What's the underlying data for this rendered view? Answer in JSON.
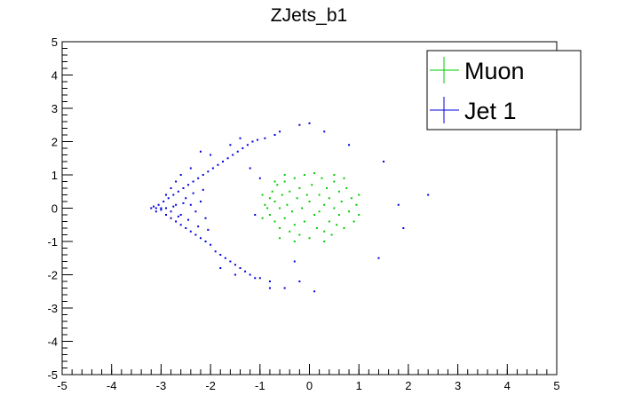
{
  "chart_data": {
    "type": "scatter",
    "title": "ZJets_b1",
    "xlabel": "",
    "ylabel": "",
    "xlim": [
      -5,
      5
    ],
    "ylim": [
      -5,
      5
    ],
    "x_ticks": [
      "-5",
      "-4",
      "-3",
      "-2",
      "-1",
      "0",
      "1",
      "2",
      "3",
      "4",
      "5"
    ],
    "y_ticks": [
      "-5",
      "-4",
      "-3",
      "-2",
      "-1",
      "0",
      "1",
      "2",
      "3",
      "4",
      "5"
    ],
    "legend_position": "top-right",
    "grid": false,
    "series": [
      {
        "name": "Muon",
        "color": "#00cc00",
        "points": [
          [
            -0.9,
            0.1
          ],
          [
            -0.85,
            0.0
          ],
          [
            -0.8,
            0.3
          ],
          [
            -0.8,
            -0.2
          ],
          [
            -0.75,
            0.5
          ],
          [
            -0.7,
            -0.4
          ],
          [
            -0.7,
            0.2
          ],
          [
            -0.65,
            0.7
          ],
          [
            -0.6,
            -0.6
          ],
          [
            -0.6,
            0.0
          ],
          [
            -0.55,
            0.4
          ],
          [
            -0.5,
            -0.3
          ],
          [
            -0.5,
            0.8
          ],
          [
            -0.45,
            0.1
          ],
          [
            -0.4,
            -0.7
          ],
          [
            -0.4,
            0.5
          ],
          [
            -0.35,
            -0.1
          ],
          [
            -0.3,
            0.9
          ],
          [
            -0.3,
            -0.5
          ],
          [
            -0.25,
            0.3
          ],
          [
            -0.2,
            -0.8
          ],
          [
            -0.2,
            0.6
          ],
          [
            -0.15,
            0.0
          ],
          [
            -0.1,
            1.0
          ],
          [
            -0.1,
            -0.4
          ],
          [
            -0.05,
            0.4
          ],
          [
            0.0,
            -0.9
          ],
          [
            0.0,
            0.2
          ],
          [
            0.05,
            0.7
          ],
          [
            0.1,
            -0.2
          ],
          [
            0.1,
            1.05
          ],
          [
            0.15,
            -0.6
          ],
          [
            0.2,
            0.4
          ],
          [
            0.2,
            -0.1
          ],
          [
            0.25,
            0.9
          ],
          [
            0.3,
            -0.7
          ],
          [
            0.3,
            0.1
          ],
          [
            0.35,
            0.6
          ],
          [
            0.4,
            -0.4
          ],
          [
            0.4,
            0.3
          ],
          [
            0.45,
            -0.8
          ],
          [
            0.5,
            0.8
          ],
          [
            0.5,
            0.0
          ],
          [
            0.55,
            -0.5
          ],
          [
            0.6,
            0.5
          ],
          [
            0.6,
            -0.2
          ],
          [
            0.65,
            0.2
          ],
          [
            0.7,
            -0.6
          ],
          [
            0.75,
            0.6
          ],
          [
            0.8,
            -0.1
          ],
          [
            0.85,
            0.3
          ],
          [
            0.9,
            -0.4
          ],
          [
            0.95,
            0.1
          ],
          [
            1.0,
            -0.2
          ],
          [
            1.0,
            0.4
          ],
          [
            -0.95,
            -0.3
          ],
          [
            -0.95,
            0.4
          ],
          [
            -0.6,
            -0.9
          ],
          [
            -0.3,
            -1.0
          ],
          [
            0.3,
            -1.0
          ],
          [
            0.5,
            1.0
          ],
          [
            -0.5,
            1.0
          ],
          [
            0.7,
            0.9
          ],
          [
            -0.7,
            0.8
          ]
        ]
      },
      {
        "name": "Jet 1",
        "color": "#0000e0",
        "points": [
          [
            -3.2,
            0.0
          ],
          [
            -3.15,
            0.05
          ],
          [
            -3.1,
            -0.1
          ],
          [
            -3.05,
            0.1
          ],
          [
            -3.0,
            -0.05
          ],
          [
            -2.95,
            0.2
          ],
          [
            -2.9,
            -0.2
          ],
          [
            -2.85,
            0.3
          ],
          [
            -2.8,
            -0.3
          ],
          [
            -2.75,
            0.4
          ],
          [
            -2.7,
            -0.4
          ],
          [
            -2.65,
            0.5
          ],
          [
            -2.6,
            -0.5
          ],
          [
            -2.55,
            0.6
          ],
          [
            -2.5,
            -0.6
          ],
          [
            -2.45,
            0.7
          ],
          [
            -2.4,
            -0.7
          ],
          [
            -2.35,
            0.8
          ],
          [
            -2.3,
            -0.8
          ],
          [
            -2.25,
            0.9
          ],
          [
            -2.2,
            -0.9
          ],
          [
            -2.15,
            1.0
          ],
          [
            -2.1,
            -1.0
          ],
          [
            -2.05,
            1.1
          ],
          [
            -2.0,
            -1.1
          ],
          [
            -1.95,
            1.2
          ],
          [
            -1.9,
            -1.3
          ],
          [
            -1.85,
            1.3
          ],
          [
            -1.8,
            -1.4
          ],
          [
            -1.75,
            1.4
          ],
          [
            -1.7,
            -1.5
          ],
          [
            -1.65,
            1.5
          ],
          [
            -1.6,
            -1.6
          ],
          [
            -1.55,
            1.6
          ],
          [
            -1.5,
            -1.7
          ],
          [
            -1.45,
            1.7
          ],
          [
            -1.4,
            -1.8
          ],
          [
            -1.35,
            1.8
          ],
          [
            -1.3,
            -1.9
          ],
          [
            -1.25,
            1.9
          ],
          [
            -1.2,
            -2.0
          ],
          [
            -1.15,
            2.0
          ],
          [
            -1.1,
            -2.1
          ],
          [
            -1.05,
            2.05
          ],
          [
            -1.0,
            -2.1
          ],
          [
            -0.9,
            2.1
          ],
          [
            -0.8,
            -2.2
          ],
          [
            -0.7,
            2.2
          ],
          [
            -1.6,
            1.9
          ],
          [
            -1.4,
            2.1
          ],
          [
            -1.8,
            -1.8
          ],
          [
            -1.5,
            -2.0
          ],
          [
            -2.0,
            1.6
          ],
          [
            -2.2,
            1.7
          ],
          [
            -2.4,
            1.2
          ],
          [
            -2.6,
            1.0
          ],
          [
            -2.7,
            0.8
          ],
          [
            -2.8,
            0.6
          ],
          [
            -2.9,
            0.4
          ],
          [
            -2.5,
            0.3
          ],
          [
            -2.4,
            0.1
          ],
          [
            -2.3,
            -0.1
          ],
          [
            -2.2,
            0.2
          ],
          [
            -2.1,
            -0.3
          ],
          [
            -2.6,
            -0.2
          ],
          [
            -2.7,
            0.1
          ],
          [
            -2.8,
            -0.1
          ],
          [
            -2.45,
            -0.35
          ],
          [
            -2.35,
            0.45
          ],
          [
            -2.25,
            -0.55
          ],
          [
            -2.15,
            0.55
          ],
          [
            -2.05,
            -0.65
          ],
          [
            -1.2,
            1.2
          ],
          [
            -0.8,
            -2.4
          ],
          [
            -0.2,
            -2.2
          ],
          [
            0.1,
            -2.5
          ],
          [
            -0.5,
            -2.4
          ],
          [
            -0.2,
            2.5
          ],
          [
            0.0,
            2.55
          ],
          [
            0.3,
            2.3
          ],
          [
            0.8,
            1.9
          ],
          [
            -0.6,
            2.3
          ],
          [
            1.5,
            1.4
          ],
          [
            1.8,
            0.1
          ],
          [
            2.4,
            0.4
          ],
          [
            1.9,
            -0.6
          ],
          [
            1.4,
            -1.5
          ],
          [
            -0.3,
            -1.6
          ],
          [
            -1.0,
            0.9
          ],
          [
            -1.1,
            -0.2
          ],
          [
            -2.9,
            0.0
          ],
          [
            -3.0,
            0.0
          ],
          [
            -3.1,
            0.0
          ],
          [
            -2.55,
            0.15
          ],
          [
            -2.65,
            -0.25
          ],
          [
            -2.75,
            0.05
          ]
        ]
      }
    ]
  }
}
